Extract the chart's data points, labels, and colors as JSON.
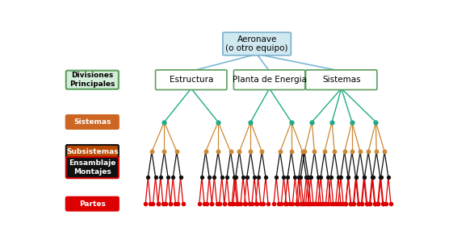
{
  "title": "Aeronave\n(o otro equipo)",
  "lv1_labels": [
    "Estructura",
    "Planta de Energia",
    "Sistemas"
  ],
  "root_box_bg": "#D0E8F0",
  "root_box_edge": "#7AB0CC",
  "lv1_box_bg": "#FFFFFF",
  "lv1_box_edge": "#5A9E5A",
  "root_line_color": "#7AB8D4",
  "lv1_lv2_line_color": "#22AA88",
  "lv2_lv3_line_color": "#CC8833",
  "lv3_lv4_line_color": "#111111",
  "lv4_lv5_line_color": "#DD0000",
  "lv2_dot_color": "#22AA88",
  "lv3_dot_color": "#CC8833",
  "lv4_dot_color": "#111111",
  "lv5_dot_color": "#DD0000",
  "legend_div_bg": "#D4EDDA",
  "legend_div_edge": "#5A9E5A",
  "legend_sis_bg": "#CC6622",
  "legend_sub_bg": "#B84800",
  "legend_sub_edge": "#111111",
  "legend_ens_bg": "#111111",
  "legend_ens_edge": "#CC0000",
  "legend_par_bg": "#DD0000"
}
